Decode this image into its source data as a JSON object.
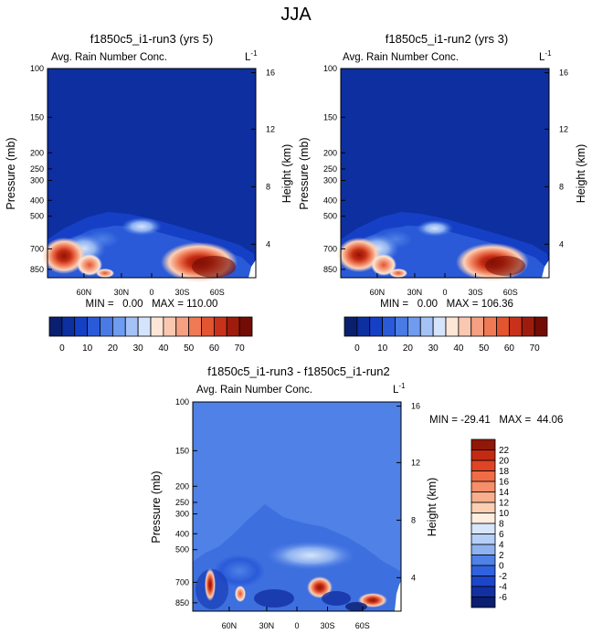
{
  "page_title": "JJA",
  "chart_data": [
    {
      "type": "heatmap",
      "title": "f1850c5_i1-run3 (yrs 5)",
      "subtitle_left": "Avg. Rain Number Conc.",
      "units": "L",
      "units_exp": "-1",
      "ylabel": "Pressure (mb)",
      "ylabel_right": "Height (km)",
      "x_ticks": [
        "60N",
        "30N",
        "0",
        "30S",
        "60S"
      ],
      "y_ticks": [
        "100",
        "150",
        "200",
        "250",
        "300",
        "400",
        "500",
        "700",
        "850"
      ],
      "y_ticks_right": [
        "16",
        "12",
        "8",
        "4"
      ],
      "stats": "MIN =   0.00   MAX = 110.00",
      "min": 0.0,
      "max": 110.0,
      "colorbar_ticks": [
        "0",
        "10",
        "20",
        "30",
        "40",
        "50",
        "60",
        "70"
      ],
      "colorbar_orientation": "horizontal",
      "palette": [
        "#0a1f6e",
        "#0d2fa0",
        "#1540c6",
        "#2a5ad8",
        "#4a7ae4",
        "#6f9bf0",
        "#a5c2f6",
        "#d5e4fb",
        "#fde6d5",
        "#fac8b1",
        "#f5a082",
        "#ef7a55",
        "#e35430",
        "#c8321b",
        "#9e1c0e",
        "#730c04"
      ]
    },
    {
      "type": "heatmap",
      "title": "f1850c5_i1-run2 (yrs 3)",
      "subtitle_left": "Avg. Rain Number Conc.",
      "units": "L",
      "units_exp": "-1",
      "ylabel": "Pressure (mb)",
      "ylabel_right": "Height (km)",
      "x_ticks": [
        "60N",
        "30N",
        "0",
        "30S",
        "60S"
      ],
      "y_ticks": [
        "100",
        "150",
        "200",
        "250",
        "300",
        "400",
        "500",
        "700",
        "850"
      ],
      "y_ticks_right": [
        "16",
        "12",
        "8",
        "4"
      ],
      "stats": "MIN =   0.00   MAX = 106.36",
      "min": 0.0,
      "max": 106.36,
      "colorbar_ticks": [
        "0",
        "10",
        "20",
        "30",
        "40",
        "50",
        "60",
        "70"
      ],
      "colorbar_orientation": "horizontal",
      "palette": [
        "#0a1f6e",
        "#0d2fa0",
        "#1540c6",
        "#2a5ad8",
        "#4a7ae4",
        "#6f9bf0",
        "#a5c2f6",
        "#d5e4fb",
        "#fde6d5",
        "#fac8b1",
        "#f5a082",
        "#ef7a55",
        "#e35430",
        "#c8321b",
        "#9e1c0e",
        "#730c04"
      ]
    },
    {
      "type": "heatmap",
      "title": "f1850c5_i1-run3 - f1850c5_i1-run2",
      "subtitle_left": "Avg. Rain Number Conc.",
      "units": "L",
      "units_exp": "-1",
      "ylabel": "Pressure (mb)",
      "ylabel_right": "Height (km)",
      "x_ticks": [
        "60N",
        "30N",
        "0",
        "30S",
        "60S"
      ],
      "y_ticks": [
        "100",
        "150",
        "200",
        "250",
        "300",
        "400",
        "500",
        "700",
        "850"
      ],
      "y_ticks_right": [
        "16",
        "12",
        "8",
        "4"
      ],
      "stats": "MIN = -29.41   MAX =  44.06",
      "min": -29.41,
      "max": 44.06,
      "colorbar_ticks": [
        "22",
        "20",
        "18",
        "16",
        "14",
        "12",
        "10",
        "8",
        "6",
        "4",
        "2",
        "0",
        "-2",
        "-4",
        "-6"
      ],
      "colorbar_orientation": "vertical",
      "palette": [
        "#8f1808",
        "#c42a12",
        "#e04424",
        "#f06c46",
        "#f68e69",
        "#f9ae8d",
        "#fbcfb4",
        "#fdeee0",
        "#d8e6fb",
        "#b5cff6",
        "#8fb2f0",
        "#4f81e6",
        "#2f62dc",
        "#1c45c9",
        "#1330a3",
        "#0b1e70"
      ]
    }
  ]
}
